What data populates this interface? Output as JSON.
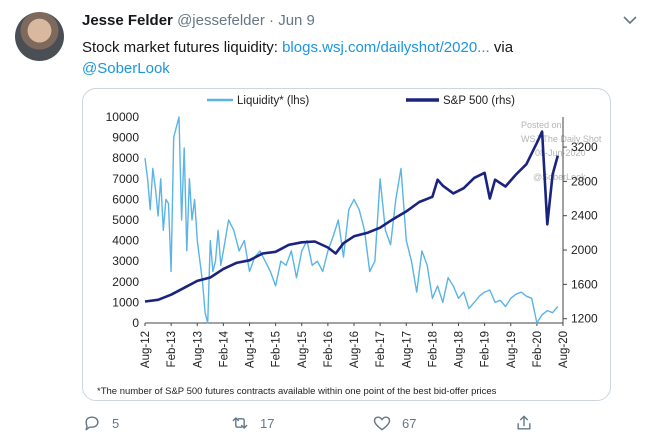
{
  "tweet": {
    "author_name": "Jesse Felder",
    "author_handle": "@jessefelder",
    "separator": "·",
    "date": "Jun 9",
    "text_prefix": "Stock market futures liquidity: ",
    "link_text": "blogs.wsj.com/dailyshot/2020...",
    "text_mid": " via",
    "mention": "@SoberLook"
  },
  "actions": {
    "replies": "5",
    "retweets": "17",
    "likes": "67"
  },
  "icons": {
    "avatar": "avatar-photo",
    "more": "chevron-down-icon",
    "reply": "reply-icon",
    "retweet": "retweet-icon",
    "like": "heart-icon",
    "share": "share-icon"
  },
  "colors": {
    "liquidity": "#5ab4e5",
    "sp500": "#1a237e",
    "link": "#1b95e0"
  },
  "chart_data": {
    "type": "line",
    "legend": [
      "Liquidity* (lhs)",
      "S&P 500 (rhs)"
    ],
    "legend_position": "top",
    "watermark": [
      "Posted on",
      "WSJ The Daily Shot",
      "08-Jun-2020",
      "@SoberLook"
    ],
    "footnote": "*The number of S&P 500 futures contracts available within one point of the best bid-offer prices",
    "x_ticks": [
      "Aug-12",
      "Feb-13",
      "Aug-13",
      "Feb-14",
      "Aug-14",
      "Feb-15",
      "Aug-15",
      "Feb-16",
      "Aug-16",
      "Feb-17",
      "Aug-17",
      "Feb-18",
      "Aug-18",
      "Feb-19",
      "Aug-19",
      "Feb-20",
      "Aug-20"
    ],
    "y_left": {
      "ticks": [
        "10000",
        "9000",
        "8000",
        "7000",
        "6000",
        "5000",
        "4000",
        "3000",
        "2000",
        "1000",
        "0"
      ],
      "range": [
        0,
        10000
      ]
    },
    "y_right": {
      "ticks": [
        "3200",
        "2800",
        "2400",
        "2000",
        "1600",
        "1200"
      ],
      "range": [
        1150,
        3550
      ]
    },
    "x_range": [
      0,
      16
    ],
    "series": [
      {
        "name": "Liquidity* (lhs)",
        "axis": "left",
        "x": [
          0,
          0.1,
          0.2,
          0.3,
          0.4,
          0.5,
          0.6,
          0.7,
          0.8,
          0.9,
          1.0,
          1.1,
          1.2,
          1.3,
          1.4,
          1.5,
          1.6,
          1.7,
          1.8,
          1.9,
          2.0,
          2.1,
          2.2,
          2.3,
          2.4,
          2.5,
          2.6,
          2.7,
          2.8,
          2.9,
          3.0,
          3.2,
          3.4,
          3.6,
          3.8,
          4.0,
          4.2,
          4.4,
          4.6,
          4.8,
          5.0,
          5.2,
          5.4,
          5.6,
          5.8,
          6.0,
          6.2,
          6.4,
          6.6,
          6.8,
          7.0,
          7.2,
          7.4,
          7.6,
          7.8,
          8.0,
          8.2,
          8.4,
          8.6,
          8.8,
          9.0,
          9.2,
          9.4,
          9.6,
          9.8,
          10.0,
          10.2,
          10.4,
          10.6,
          10.8,
          11.0,
          11.2,
          11.4,
          11.6,
          11.8,
          12.0,
          12.2,
          12.4,
          12.6,
          12.8,
          13.0,
          13.2,
          13.4,
          13.6,
          13.8,
          14.0,
          14.2,
          14.4,
          14.6,
          14.8,
          15.0,
          15.2,
          15.4,
          15.6,
          15.8
        ],
        "values": [
          8000,
          7000,
          5500,
          7500,
          6500,
          5200,
          7000,
          4500,
          6000,
          5800,
          2500,
          9000,
          9500,
          10000,
          5000,
          8500,
          3500,
          7000,
          5000,
          6000,
          4000,
          3000,
          2000,
          500,
          0,
          4000,
          2500,
          3000,
          4500,
          2800,
          3500,
          5000,
          4500,
          3500,
          4000,
          2500,
          3200,
          3500,
          3000,
          2500,
          1800,
          3000,
          2800,
          3500,
          2200,
          3500,
          4000,
          2800,
          3000,
          2500,
          3500,
          4200,
          5000,
          3200,
          5500,
          6000,
          5500,
          4500,
          2500,
          3000,
          7000,
          4500,
          3800,
          6000,
          7500,
          4000,
          3000,
          1500,
          3500,
          2800,
          1200,
          1800,
          1000,
          2200,
          1800,
          1200,
          1500,
          700,
          1000,
          1300,
          1500,
          1600,
          1000,
          1100,
          800,
          1200,
          1400,
          1500,
          1300,
          1200,
          0,
          400,
          600,
          500,
          800
        ]
      },
      {
        "name": "S&P 500 (rhs)",
        "axis": "right",
        "x": [
          0,
          0.5,
          1.0,
          1.5,
          2.0,
          2.5,
          3.0,
          3.5,
          4.0,
          4.5,
          5.0,
          5.5,
          6.0,
          6.5,
          7.0,
          7.3,
          7.6,
          8.0,
          8.5,
          9.0,
          9.5,
          10.0,
          10.5,
          11.0,
          11.2,
          11.4,
          11.8,
          12.2,
          12.6,
          13.0,
          13.2,
          13.4,
          13.8,
          14.2,
          14.6,
          15.0,
          15.2,
          15.4,
          15.6,
          15.8
        ],
        "values": [
          1400,
          1420,
          1480,
          1560,
          1640,
          1680,
          1780,
          1850,
          1880,
          1960,
          1980,
          2060,
          2090,
          2100,
          2030,
          1960,
          2080,
          2160,
          2200,
          2260,
          2360,
          2450,
          2560,
          2620,
          2820,
          2750,
          2660,
          2720,
          2840,
          2900,
          2600,
          2820,
          2740,
          2880,
          3000,
          3250,
          3380,
          2300,
          2880,
          3100
        ]
      }
    ]
  }
}
